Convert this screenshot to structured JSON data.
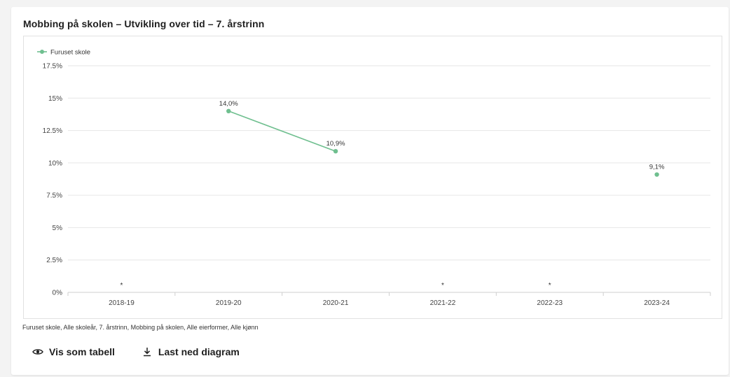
{
  "title": "Mobbing på skolen – Utvikling over tid – 7. årstrinn",
  "footnote": "Furuset skole, Alle skoleår, 7. årstrinn, Mobbing på skolen, Alle eierformer, Alle kjønn",
  "actions": {
    "table_label": "Vis som tabell",
    "download_label": "Last ned diagram"
  },
  "chart_data": {
    "type": "line",
    "title": "",
    "xlabel": "",
    "ylabel": "",
    "categories": [
      "2018-19",
      "2019-20",
      "2020-21",
      "2021-22",
      "2022-23",
      "2023-24"
    ],
    "ylim": [
      0,
      17.5
    ],
    "yticks": [
      0,
      2.5,
      5,
      7.5,
      10,
      12.5,
      15,
      17.5
    ],
    "ytick_labels": [
      "0%",
      "2.5%",
      "5%",
      "7.5%",
      "10%",
      "12.5%",
      "15%",
      "17.5%"
    ],
    "grid": true,
    "legend_position": "top-left",
    "series": [
      {
        "name": "Furuset skole",
        "color": "#6fbf8f",
        "values": [
          null,
          14.0,
          10.9,
          null,
          null,
          9.1
        ],
        "data_labels": [
          null,
          "14,0%",
          "10,9%",
          null,
          null,
          "9,1%"
        ],
        "suppressed_marks": [
          "*",
          null,
          null,
          "*",
          "*",
          null
        ]
      }
    ]
  }
}
